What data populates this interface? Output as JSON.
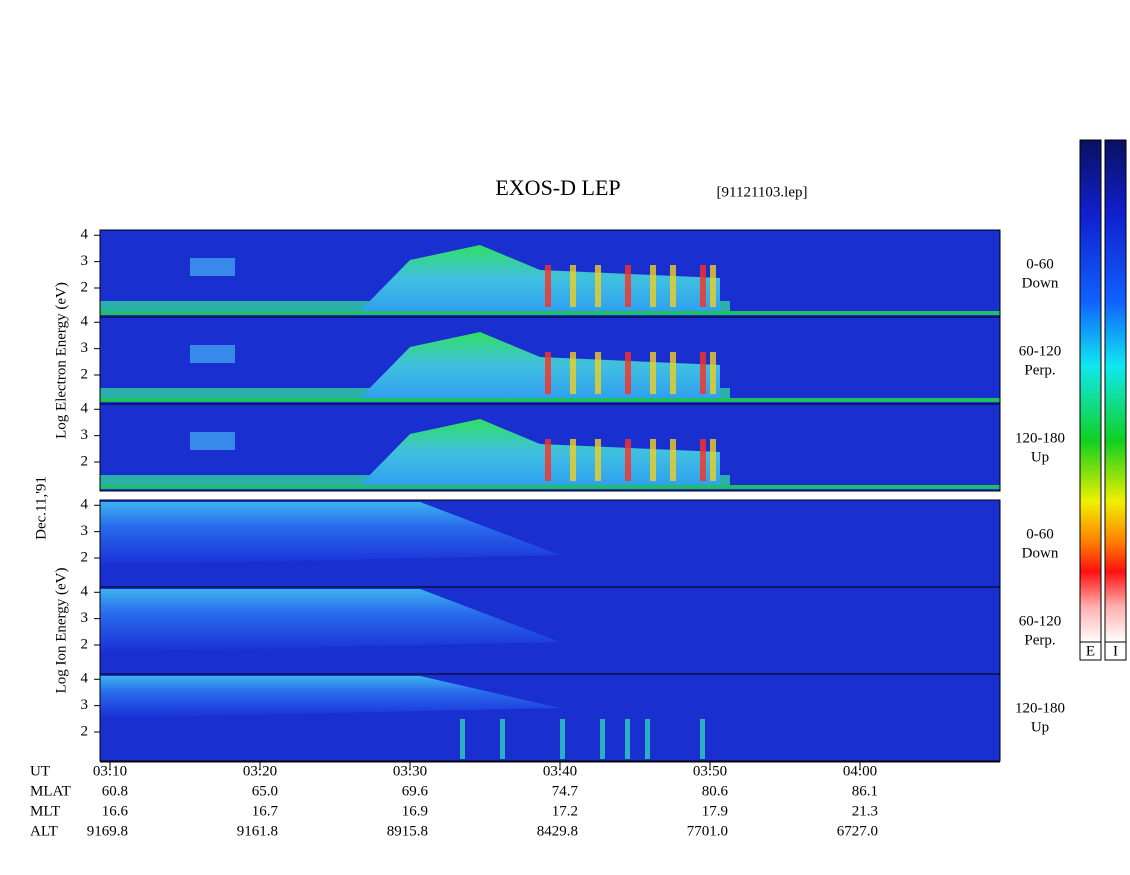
{
  "chart_data": {
    "type": "spectrogram",
    "title": "EXOS-D LEP",
    "file_label": "[91121103.lep]",
    "date_label": "Dec.11,'91",
    "groups": [
      {
        "ylabel": "Log Electron Energy (eV)",
        "panels": [
          {
            "label": [
              "0-60",
              "Down"
            ],
            "ylim": [
              0.9,
              4.2
            ],
            "yticks": [
              2,
              3,
              4
            ]
          },
          {
            "label": [
              "60-120",
              "Perp."
            ],
            "ylim": [
              0.9,
              4.2
            ],
            "yticks": [
              2,
              3,
              4
            ]
          },
          {
            "label": [
              "120-180",
              "Up"
            ],
            "ylim": [
              0.9,
              4.2
            ],
            "yticks": [
              2,
              3,
              4
            ]
          }
        ]
      },
      {
        "ylabel": "Log Ion Energy (eV)",
        "panels": [
          {
            "label": [
              "0-60",
              "Down"
            ],
            "ylim": [
              0.9,
              4.2
            ],
            "yticks": [
              2,
              3,
              4
            ]
          },
          {
            "label": [
              "60-120",
              "Perp."
            ],
            "ylim": [
              0.9,
              4.2
            ],
            "yticks": [
              2,
              3,
              4
            ]
          },
          {
            "label": [
              "120-180",
              "Up"
            ],
            "ylim": [
              0.9,
              4.2
            ],
            "yticks": [
              2,
              3,
              4
            ]
          }
        ]
      }
    ],
    "xticks": [
      "03:10",
      "03:20",
      "03:30",
      "03:40",
      "03:50",
      "04:00"
    ],
    "rows": [
      {
        "name": "UT"
      },
      {
        "name": "MLAT",
        "values": [
          "60.8",
          "65.0",
          "69.6",
          "74.7",
          "80.6",
          "86.1"
        ]
      },
      {
        "name": "MLT",
        "values": [
          "16.6",
          "16.7",
          "16.9",
          "17.2",
          "17.9",
          "21.3"
        ]
      },
      {
        "name": "ALT",
        "values": [
          "9169.8",
          "9161.8",
          "8915.8",
          "8429.8",
          "7701.0",
          "6727.0"
        ]
      }
    ],
    "colorbars": [
      "E",
      "I"
    ]
  }
}
